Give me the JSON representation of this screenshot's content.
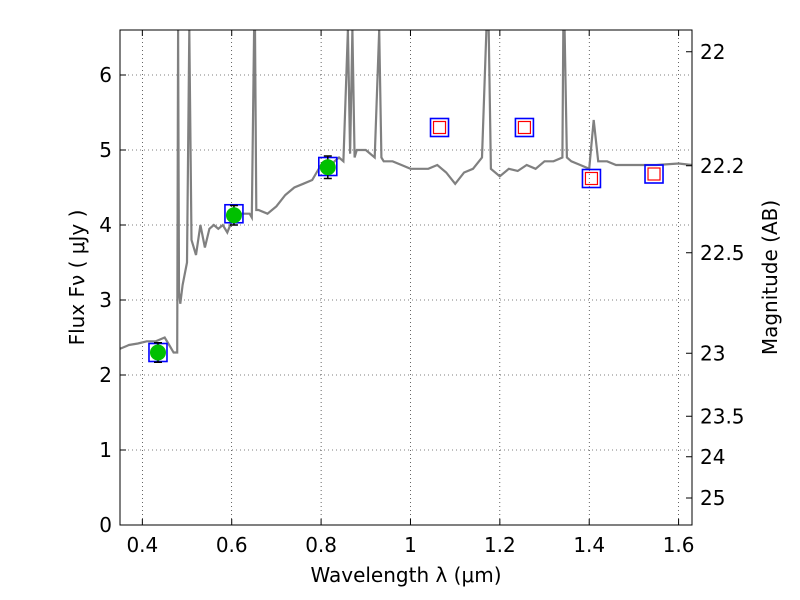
{
  "chart_data": {
    "type": "line",
    "xlabel": "Wavelength  λ (μm)",
    "ylabel": "Flux  Fν  ( μJy )",
    "y2label": "Magnitude (AB)",
    "xlim": [
      0.35,
      1.63
    ],
    "ylim": [
      0,
      6.6
    ],
    "grid": true,
    "x_ticks": [
      0.4,
      0.6,
      0.8,
      1.0,
      1.2,
      1.4,
      1.6
    ],
    "x_tick_labels": [
      "0.4",
      "0.6",
      "0.8",
      "1",
      "1.2",
      "1.4",
      "1.6"
    ],
    "y_ticks": [
      0,
      1,
      2,
      3,
      4,
      5,
      6
    ],
    "y_tick_labels": [
      "0",
      "1",
      "2",
      "3",
      "4",
      "5",
      "6"
    ],
    "y2_ticks": [
      {
        "label": "22",
        "flux": 6.31
      },
      {
        "label": "22.2",
        "flux": 4.79
      },
      {
        "label": "22.5",
        "flux": 3.63
      },
      {
        "label": "23",
        "flux": 2.29
      },
      {
        "label": "23.5",
        "flux": 1.45
      },
      {
        "label": "24",
        "flux": 0.91
      },
      {
        "label": "25",
        "flux": 0.36
      }
    ],
    "colors": {
      "spectrum": "#808080",
      "model_box": "#0000ff",
      "observed_point": "#00c000",
      "upper_box": "#ff0000",
      "error_bar": "#000000",
      "grid": "#000000"
    },
    "series": [
      {
        "kind": "spectrum",
        "x": [
          0.35,
          0.37,
          0.39,
          0.41,
          0.43,
          0.45,
          0.46,
          0.47,
          0.478,
          0.48,
          0.482,
          0.485,
          0.49,
          0.5,
          0.505,
          0.51,
          0.52,
          0.53,
          0.54,
          0.55,
          0.56,
          0.57,
          0.58,
          0.59,
          0.6,
          0.62,
          0.64,
          0.645,
          0.65,
          0.652,
          0.655,
          0.66,
          0.68,
          0.7,
          0.72,
          0.74,
          0.76,
          0.78,
          0.79,
          0.8,
          0.81,
          0.82,
          0.83,
          0.84,
          0.85,
          0.86,
          0.865,
          0.87,
          0.875,
          0.88,
          0.9,
          0.92,
          0.93,
          0.935,
          0.94,
          0.96,
          0.98,
          1.0,
          1.02,
          1.04,
          1.06,
          1.08,
          1.1,
          1.12,
          1.14,
          1.16,
          1.17,
          1.175,
          1.18,
          1.2,
          1.22,
          1.24,
          1.26,
          1.28,
          1.3,
          1.32,
          1.34,
          1.342,
          1.345,
          1.35,
          1.36,
          1.38,
          1.4,
          1.41,
          1.42,
          1.44,
          1.46,
          1.5,
          1.55,
          1.6,
          1.63
        ],
        "y": [
          2.35,
          2.4,
          2.42,
          2.45,
          2.45,
          2.5,
          2.4,
          2.3,
          2.3,
          6.6,
          3.1,
          2.95,
          3.2,
          3.5,
          6.6,
          3.8,
          3.6,
          4.0,
          3.7,
          3.95,
          4.0,
          3.95,
          4.0,
          3.9,
          4.05,
          4.15,
          4.15,
          4.1,
          6.6,
          6.6,
          4.2,
          4.2,
          4.15,
          4.25,
          4.4,
          4.5,
          4.55,
          4.6,
          4.7,
          4.8,
          4.8,
          4.75,
          4.85,
          4.9,
          4.85,
          6.6,
          4.95,
          6.6,
          4.9,
          5.0,
          5.0,
          4.9,
          6.6,
          4.9,
          4.85,
          4.85,
          4.8,
          4.75,
          4.75,
          4.75,
          4.8,
          4.7,
          4.55,
          4.7,
          4.75,
          4.9,
          6.6,
          6.6,
          4.75,
          4.65,
          4.75,
          4.72,
          4.8,
          4.75,
          4.85,
          4.85,
          4.9,
          6.6,
          6.6,
          4.9,
          4.85,
          4.8,
          4.75,
          5.4,
          4.85,
          4.85,
          4.8,
          4.8,
          4.8,
          4.82,
          4.8
        ]
      },
      {
        "kind": "model_photometry",
        "x": [
          0.435,
          0.605,
          0.815,
          1.065,
          1.255,
          1.405,
          1.545
        ],
        "y": [
          2.3,
          4.15,
          4.78,
          5.3,
          5.3,
          4.62,
          4.68
        ]
      },
      {
        "kind": "observed_photometry",
        "x": [
          0.435,
          0.605,
          0.815
        ],
        "y": [
          2.3,
          4.13,
          4.77
        ],
        "yerr": [
          0.13,
          0.13,
          0.15
        ]
      },
      {
        "kind": "upper_limit_boxes",
        "x": [
          1.065,
          1.255,
          1.405,
          1.545
        ],
        "y": [
          5.3,
          5.3,
          4.62,
          4.68
        ]
      }
    ]
  }
}
